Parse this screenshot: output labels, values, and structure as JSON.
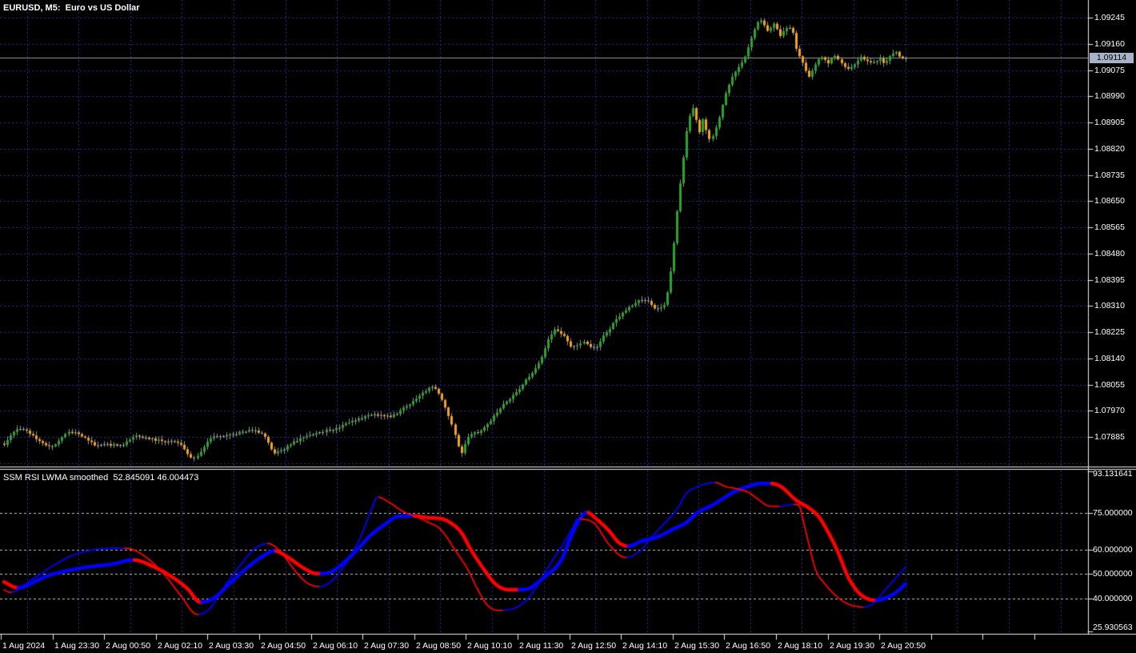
{
  "header": {
    "title": "EURUSD, M5:  Euro vs US Dollar"
  },
  "indicator": {
    "name": "SSM RSI LWMA smoothed",
    "value_fast": "52.845091",
    "value_slow": "46.004473"
  },
  "price_axis": {
    "labels": [
      "1.09245",
      "1.09160",
      "1.09075",
      "1.08990",
      "1.08905",
      "1.08820",
      "1.08735",
      "1.08650",
      "1.08565",
      "1.08480",
      "1.08395",
      "1.08310",
      "1.08225",
      "1.08140",
      "1.08055",
      "1.07970",
      "1.07885"
    ],
    "current_price": "1.09114"
  },
  "indicator_axis": {
    "labels": [
      "93.131641",
      "75.000000",
      "60.000000",
      "50.000000",
      "40.000000",
      "25.930563"
    ]
  },
  "time_axis": {
    "labels": [
      "1 Aug 2024",
      "1 Aug 23:30",
      "2 Aug 00:50",
      "2 Aug 02:10",
      "2 Aug 03:30",
      "2 Aug 04:50",
      "2 Aug 06:10",
      "2 Aug 07:30",
      "2 Aug 08:50",
      "2 Aug 10:10",
      "2 Aug 11:30",
      "2 Aug 12:50",
      "2 Aug 14:10",
      "2 Aug 15:30",
      "2 Aug 16:50",
      "2 Aug 18:10",
      "2 Aug 19:30",
      "2 Aug 20:50"
    ]
  },
  "colors": {
    "bull": "#2CA52C",
    "bear": "#F7A21E",
    "neutral": "#A5A5A5",
    "wick": "#8F9494",
    "grid": "#2B2B9E",
    "level": "#C8C8C8",
    "border": "#EDEDED",
    "line_up": "#0000FF",
    "line_down": "#FF0000",
    "bid_line": "#9A9A9A",
    "tag_bg": "#A9B3C8",
    "tag_text": "#000000",
    "axis_text": "#FFFFFF"
  },
  "chart_data": {
    "type": "candlestick+line",
    "symbol": "EURUSD",
    "timeframe": "M5",
    "title": "EURUSD, M5:  Euro vs US Dollar",
    "price_ticks": {
      "top": 1.09245,
      "step": 0.00085,
      "count": 18
    },
    "last_close": 1.09114,
    "price_path": [
      [
        0,
        1.07862
      ],
      [
        5,
        1.07914
      ],
      [
        14,
        1.07854
      ],
      [
        21,
        1.07901
      ],
      [
        29,
        1.07859
      ],
      [
        36,
        1.07859
      ],
      [
        41,
        1.07887
      ],
      [
        48,
        1.07874
      ],
      [
        52,
        1.07869
      ],
      [
        55,
        1.07861
      ],
      [
        58,
        1.07817
      ],
      [
        60,
        1.07822
      ],
      [
        64,
        1.07879
      ],
      [
        70,
        1.07892
      ],
      [
        76,
        1.07905
      ],
      [
        81,
        1.07887
      ],
      [
        84,
        1.07835
      ],
      [
        91,
        1.07874
      ],
      [
        98,
        1.079
      ],
      [
        103,
        1.07913
      ],
      [
        111,
        1.07947
      ],
      [
        116,
        1.07957
      ],
      [
        120,
        1.07952
      ],
      [
        124,
        1.07978
      ],
      [
        129,
        1.08017
      ],
      [
        133,
        1.08048
      ],
      [
        136,
        1.08004
      ],
      [
        139,
        1.07927
      ],
      [
        142,
        1.07836
      ],
      [
        144,
        1.07887
      ],
      [
        148,
        1.07905
      ],
      [
        152,
        1.07952
      ],
      [
        155,
        1.07991
      ],
      [
        159,
        1.0803
      ],
      [
        163,
        1.08082
      ],
      [
        166,
        1.08121
      ],
      [
        169,
        1.08199
      ],
      [
        171,
        1.08232
      ],
      [
        174,
        1.08212
      ],
      [
        176,
        1.0818
      ],
      [
        180,
        1.08191
      ],
      [
        183,
        1.08173
      ],
      [
        186,
        1.08212
      ],
      [
        190,
        1.08264
      ],
      [
        193,
        1.08295
      ],
      [
        196,
        1.08321
      ],
      [
        200,
        1.08329
      ],
      [
        202,
        1.08303
      ],
      [
        205,
        1.08316
      ],
      [
        207,
        1.0842
      ],
      [
        209,
        1.0862
      ],
      [
        211,
        1.0879
      ],
      [
        212,
        1.08874
      ],
      [
        214,
        1.08952
      ],
      [
        216,
        1.08874
      ],
      [
        217,
        1.08913
      ],
      [
        219,
        1.08848
      ],
      [
        221,
        1.08887
      ],
      [
        223,
        1.08965
      ],
      [
        225,
        1.0903
      ],
      [
        227,
        1.09069
      ],
      [
        230,
        1.09121
      ],
      [
        232,
        1.09178
      ],
      [
        235,
        1.09237
      ],
      [
        237,
        1.09204
      ],
      [
        239,
        1.09224
      ],
      [
        241,
        1.09185
      ],
      [
        243,
        1.09211
      ],
      [
        245,
        1.09193
      ],
      [
        246,
        1.09147
      ],
      [
        248,
        1.091
      ],
      [
        250,
        1.09056
      ],
      [
        252,
        1.09095
      ],
      [
        254,
        1.09115
      ],
      [
        256,
        1.091
      ],
      [
        258,
        1.09121
      ],
      [
        260,
        1.091
      ],
      [
        262,
        1.09082
      ],
      [
        264,
        1.09095
      ],
      [
        266,
        1.09115
      ],
      [
        268,
        1.09107
      ],
      [
        270,
        1.091
      ],
      [
        272,
        1.09115
      ],
      [
        273,
        1.091
      ],
      [
        275,
        1.09121
      ],
      [
        277,
        1.09134
      ],
      [
        279,
        1.0911
      ],
      [
        280,
        1.09114
      ]
    ],
    "indicator": {
      "name": "SSM RSI LWMA smoothed",
      "levels": [
        75,
        60,
        50,
        40
      ],
      "range": [
        25.930563,
        93.131641
      ],
      "current_fast": 52.845091,
      "current_slow": 46.004473,
      "slow": [
        [
          0,
          46.8
        ],
        [
          4,
          44.5
        ],
        [
          14,
          49.5
        ],
        [
          24,
          52.5
        ],
        [
          34,
          54.2
        ],
        [
          40,
          55.8
        ],
        [
          48,
          52.0
        ],
        [
          52,
          49.0
        ],
        [
          57,
          44.0
        ],
        [
          61,
          38.5
        ],
        [
          65,
          40.0
        ],
        [
          70,
          46.0
        ],
        [
          75,
          52.0
        ],
        [
          80,
          57.0
        ],
        [
          84,
          59.5
        ],
        [
          88,
          57.0
        ],
        [
          93,
          52.5
        ],
        [
          97,
          50.2
        ],
        [
          101,
          50.6
        ],
        [
          104,
          53.0
        ],
        [
          109,
          59.0
        ],
        [
          114,
          66.0
        ],
        [
          119,
          71.0
        ],
        [
          122,
          73.5
        ],
        [
          127,
          73.8
        ],
        [
          132,
          73.0
        ],
        [
          135,
          72.8
        ],
        [
          138,
          71.5
        ],
        [
          142,
          67.0
        ],
        [
          145,
          60.0
        ],
        [
          149,
          52.0
        ],
        [
          153,
          45.5
        ],
        [
          157,
          43.6
        ],
        [
          162,
          43.8
        ],
        [
          168,
          49.0
        ],
        [
          173,
          55.6
        ],
        [
          176,
          65.0
        ],
        [
          179,
          73.0
        ],
        [
          181,
          75.2
        ],
        [
          184,
          72.5
        ],
        [
          188,
          67.5
        ],
        [
          191,
          62.8
        ],
        [
          194,
          61.4
        ],
        [
          198,
          63.5
        ],
        [
          203,
          65.2
        ],
        [
          208,
          68.5
        ],
        [
          212,
          71.1
        ],
        [
          215,
          74.8
        ],
        [
          220,
          78.2
        ],
        [
          224,
          81.5
        ],
        [
          227,
          83.8
        ],
        [
          231,
          85.8
        ],
        [
          235,
          87.0
        ],
        [
          238,
          87.0
        ],
        [
          241,
          86.0
        ],
        [
          246,
          80.2
        ],
        [
          250,
          77.0
        ],
        [
          253,
          73.5
        ],
        [
          256,
          67.0
        ],
        [
          259,
          59.0
        ],
        [
          262,
          49.2
        ],
        [
          265,
          43.0
        ],
        [
          268,
          40.0
        ],
        [
          271,
          39.3
        ],
        [
          273,
          39.8
        ],
        [
          277,
          42.5
        ],
        [
          280,
          46.004473
        ]
      ],
      "fast": [
        [
          0,
          43.6
        ],
        [
          2,
          42.5
        ],
        [
          9,
          48.0
        ],
        [
          16,
          54.0
        ],
        [
          22,
          58.0
        ],
        [
          30,
          60.3
        ],
        [
          36,
          60.6
        ],
        [
          40,
          60.0
        ],
        [
          45,
          56.0
        ],
        [
          50,
          49.5
        ],
        [
          55,
          41.0
        ],
        [
          60,
          33.5
        ],
        [
          64,
          36.0
        ],
        [
          68,
          44.0
        ],
        [
          73,
          53.0
        ],
        [
          78,
          60.5
        ],
        [
          82,
          62.5
        ],
        [
          86,
          59.0
        ],
        [
          90,
          52.0
        ],
        [
          94,
          46.5
        ],
        [
          98,
          44.9
        ],
        [
          102,
          47.5
        ],
        [
          107,
          56.0
        ],
        [
          111,
          66.0
        ],
        [
          114,
          76.0
        ],
        [
          116,
          81.5
        ],
        [
          120,
          79.0
        ],
        [
          124,
          75.5
        ],
        [
          128,
          73.5
        ],
        [
          132,
          71.0
        ],
        [
          135,
          69.0
        ],
        [
          137,
          66.0
        ],
        [
          140,
          60.0
        ],
        [
          144,
          52.0
        ],
        [
          147,
          44.0
        ],
        [
          150,
          37.5
        ],
        [
          153,
          35.2
        ],
        [
          157,
          35.5
        ],
        [
          162,
          39.0
        ],
        [
          166,
          46.0
        ],
        [
          170,
          55.0
        ],
        [
          174,
          63.0
        ],
        [
          177,
          70.0
        ],
        [
          178,
          72.5
        ],
        [
          183,
          71.1
        ],
        [
          188,
          61.9
        ],
        [
          193,
          56.8
        ],
        [
          198,
          60.0
        ],
        [
          201,
          65.0
        ],
        [
          205,
          70.5
        ],
        [
          209,
          76.5
        ],
        [
          212,
          83.1
        ],
        [
          215,
          85.4
        ],
        [
          218,
          86.9
        ],
        [
          221,
          87.4
        ],
        [
          224,
          85.8
        ],
        [
          227,
          85.0
        ],
        [
          231,
          83.5
        ],
        [
          235,
          79.8
        ],
        [
          237,
          78.0
        ],
        [
          241,
          77.7
        ],
        [
          245,
          78.5
        ],
        [
          247,
          78.0
        ],
        [
          248,
          73.0
        ],
        [
          250,
          62.0
        ],
        [
          252,
          52.0
        ],
        [
          255,
          45.9
        ],
        [
          258,
          41.6
        ],
        [
          261,
          38.5
        ],
        [
          264,
          37.0
        ],
        [
          267,
          36.5
        ],
        [
          270,
          38.0
        ],
        [
          273,
          42.5
        ],
        [
          277,
          48.5
        ],
        [
          280,
          52.845091
        ]
      ]
    }
  }
}
